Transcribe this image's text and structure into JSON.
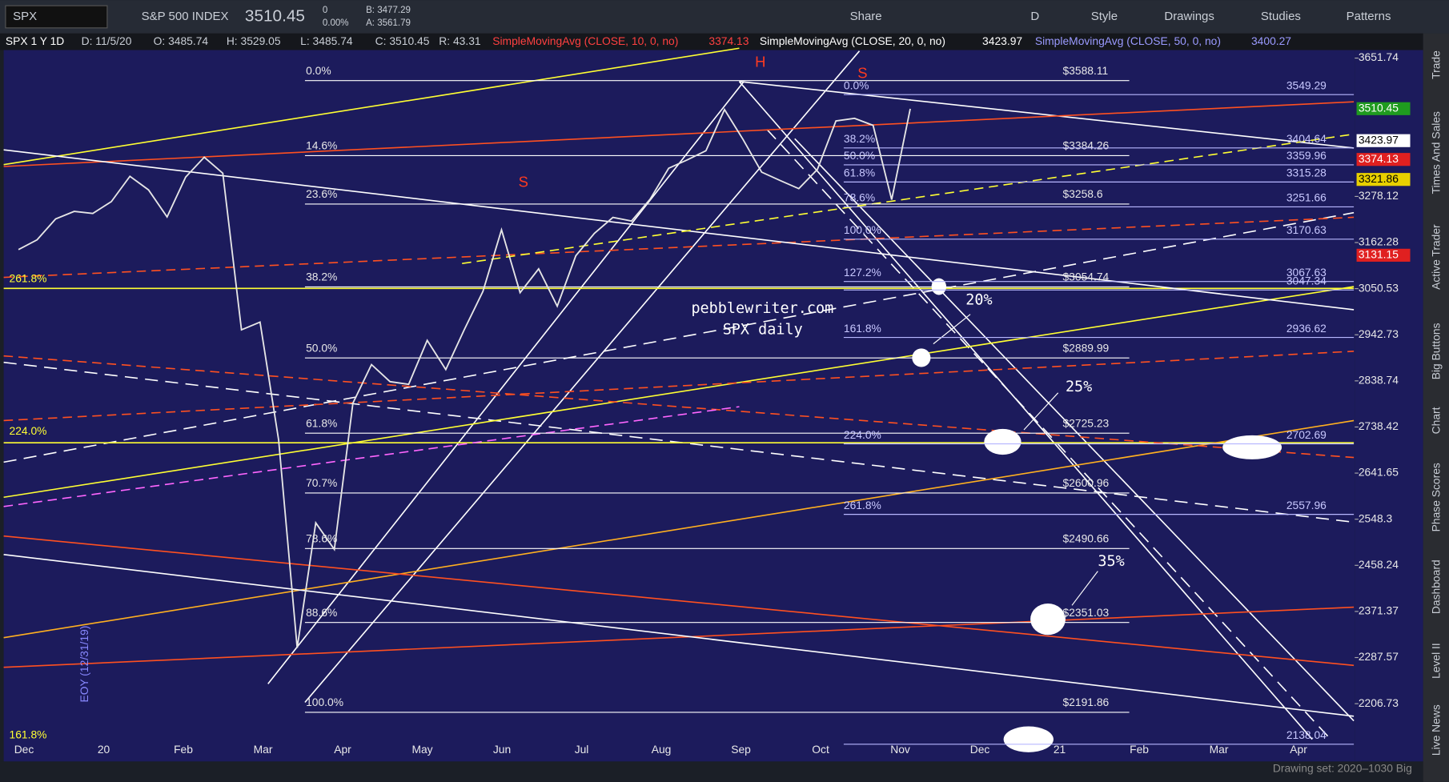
{
  "toolbar": {
    "symbol": "SPX",
    "description": "S&P 500 INDEX",
    "last": "3510.45",
    "change": "0",
    "change_pct": "0.00%",
    "bid": "B: 3477.29",
    "ask": "A: 3561.79",
    "buttons": [
      "Share",
      "D",
      "Style",
      "Drawings",
      "Studies",
      "Patterns"
    ]
  },
  "header": {
    "symbol": "SPX 1 Y 1D",
    "fields": [
      "D: 11/5/20",
      "O: 3485.74",
      "H: 3529.05",
      "L: 3485.74",
      "C: 3510.45",
      "R: 43.31"
    ],
    "studies": [
      {
        "name": "SimpleMovingAvg (CLOSE, 10, 0, no)",
        "value": "3374.13",
        "color": "#ff4040"
      },
      {
        "name": "SimpleMovingAvg (CLOSE, 20, 0, no)",
        "value": "3423.97",
        "color": "#ffffff"
      },
      {
        "name": "SimpleMovingAvg (CLOSE, 50, 0, no)",
        "value": "3400.27",
        "color": "#9a9aff"
      }
    ]
  },
  "side_tabs": [
    "Trade",
    "Times And Sales",
    "Active Trader",
    "Big Buttons",
    "Chart",
    "Phase Scores",
    "Dashboard",
    "Level II",
    "Live News"
  ],
  "footer": {
    "drawing_set": "Drawing set: 2020–1030 Big"
  },
  "chart_data": {
    "type": "line",
    "color": "#e6e6e6",
    "xtick_labels": [
      "Dec",
      "20",
      "Feb",
      "Mar",
      "Apr",
      "May",
      "Jun",
      "Jul",
      "Aug",
      "Sep",
      "Oct",
      "Nov",
      "Dec",
      "21",
      "Feb",
      "Mar",
      "Apr"
    ],
    "values": [
      3145,
      3169,
      3221,
      3240,
      3235,
      3265,
      3330,
      3295,
      3226,
      3328,
      3380,
      3338,
      2954,
      2972,
      2711,
      2305,
      2541,
      2489,
      2790,
      2875,
      2837,
      2831,
      2930,
      2864,
      2955,
      3044,
      3194,
      3041,
      3098,
      3009,
      3130,
      3185,
      3225,
      3216,
      3271,
      3351,
      3373,
      3397,
      3508,
      3427,
      3341,
      3319,
      3298,
      3348,
      3477,
      3484,
      3465,
      3270,
      3510
    ],
    "ylim": [
      2140,
      3680
    ],
    "log_scale": true,
    "yticks": [
      3651.74,
      3278.12,
      3162.28,
      3050.53,
      2942.73,
      2838.74,
      2738.42,
      2641.65,
      2548.3,
      2458.24,
      2371.37,
      2287.57,
      2206.73
    ],
    "price_labels": [
      {
        "value": 3510.45,
        "color": "#1f9b1f"
      },
      {
        "value": 3423.97,
        "color": "#ffffff"
      },
      {
        "value": 3374.13,
        "color": "#e02020"
      },
      {
        "value": 3321.86,
        "color": "#e8d000"
      },
      {
        "value": 3131.15,
        "color": "#e02020"
      }
    ],
    "fib_left": {
      "ratios": [
        "0.0%",
        "14.6%",
        "23.6%",
        "38.2%",
        "50.0%",
        "61.8%",
        "70.7%",
        "78.6%",
        "88.6%",
        "100.0%"
      ],
      "values": [
        3588.11,
        3384.26,
        3258.6,
        3054.74,
        2889.99,
        2725.23,
        2600.96,
        2490.66,
        2351.03,
        2191.86
      ],
      "value_labels": [
        "$3588.11",
        "$3384.26",
        "$3258.6",
        "$3054.74",
        "$2889.99",
        "$2725.23",
        "$2600.96",
        "$2490.66",
        "$2351.03",
        "$2191.86"
      ]
    },
    "fib_right": [
      {
        "ratio": "0.0%",
        "value": 3549.29
      },
      {
        "ratio": "38.2%",
        "value": 3404.64
      },
      {
        "ratio": "50.0%",
        "value": 3359.96
      },
      {
        "ratio": "61.8%",
        "value": 3315.28
      },
      {
        "ratio": "78.6%",
        "value": 3251.66
      },
      {
        "ratio": "100.0%",
        "value": 3170.63
      },
      {
        "ratio": "127.2%",
        "value": 3067.63
      },
      {
        "value": 3047.34
      },
      {
        "ratio": "161.8%",
        "value": 2936.62
      },
      {
        "ratio": "224.0%",
        "value": 2702.69
      },
      {
        "ratio": "261.8%",
        "value": 2557.96
      },
      {
        "value": 2138.04
      }
    ],
    "annotations": [
      "pebblewriter.com",
      "SPX daily",
      "20%",
      "25%",
      "35%",
      "H",
      "S",
      "S",
      "EOY (12/31/19)",
      "261.8%",
      "224.0%",
      "161.8%"
    ]
  }
}
